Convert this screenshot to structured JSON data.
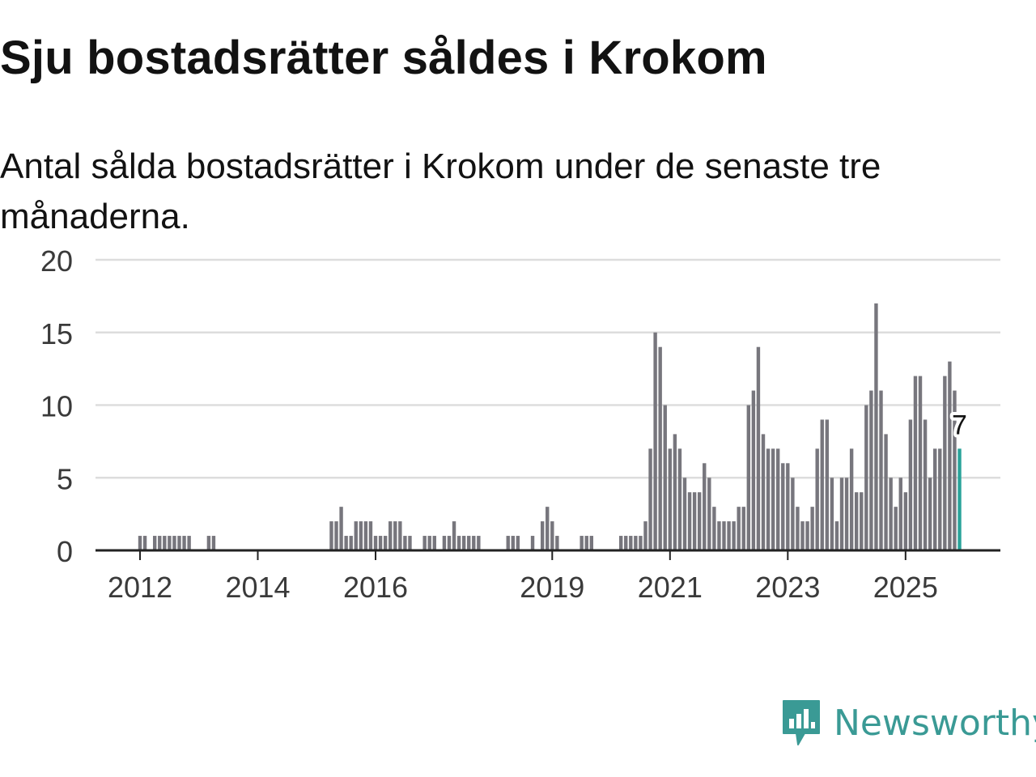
{
  "title": "Sju bostadsrätter såldes i Krokom",
  "subtitle": "Antal sålda bostadsrätter i Krokom under de senaste tre månaderna.",
  "brand": {
    "name": "Newsworthy",
    "color": "#3a9a95",
    "icon": "newsworthy-logo-icon"
  },
  "colors": {
    "bar": "#77767d",
    "highlight": "#2aa39a",
    "grid": "#dddddd",
    "axis": "#222222",
    "tick_label": "#3a3a3a"
  },
  "chart_data": {
    "type": "bar",
    "title": "Sju bostadsrätter såldes i Krokom",
    "xlabel": "",
    "ylabel": "",
    "ylim": [
      0,
      20
    ],
    "yticks": [
      0,
      5,
      10,
      15,
      20
    ],
    "xticks": [
      {
        "label": "2012",
        "index": 0
      },
      {
        "label": "2014",
        "index": 24
      },
      {
        "label": "2016",
        "index": 48
      },
      {
        "label": "2019",
        "index": 84
      },
      {
        "label": "2021",
        "index": 108
      },
      {
        "label": "2023",
        "index": 132
      },
      {
        "label": "2025",
        "index": 156
      }
    ],
    "start": "2012-01",
    "highlight_label": "7",
    "values": [
      1,
      1,
      0,
      1,
      1,
      1,
      1,
      1,
      1,
      1,
      1,
      0,
      0,
      0,
      1,
      1,
      0,
      0,
      0,
      0,
      0,
      0,
      0,
      0,
      0,
      0,
      0,
      0,
      0,
      0,
      0,
      0,
      0,
      0,
      0,
      0,
      0,
      0,
      0,
      2,
      2,
      3,
      1,
      1,
      2,
      2,
      2,
      2,
      1,
      1,
      1,
      2,
      2,
      2,
      1,
      1,
      0,
      0,
      1,
      1,
      1,
      0,
      1,
      1,
      2,
      1,
      1,
      1,
      1,
      1,
      0,
      0,
      0,
      0,
      0,
      1,
      1,
      1,
      0,
      0,
      1,
      0,
      2,
      3,
      2,
      1,
      0,
      0,
      0,
      0,
      1,
      1,
      1,
      0,
      0,
      0,
      0,
      0,
      1,
      1,
      1,
      1,
      1,
      2,
      7,
      15,
      14,
      10,
      7,
      8,
      7,
      5,
      4,
      4,
      4,
      6,
      5,
      3,
      2,
      2,
      2,
      2,
      3,
      3,
      10,
      11,
      14,
      8,
      7,
      7,
      7,
      6,
      6,
      5,
      3,
      2,
      2,
      3,
      7,
      9,
      9,
      5,
      2,
      5,
      5,
      7,
      4,
      4,
      10,
      11,
      17,
      11,
      8,
      5,
      3,
      5,
      4,
      9,
      12,
      12,
      9,
      5,
      7,
      7,
      12,
      13,
      11,
      7
    ]
  }
}
